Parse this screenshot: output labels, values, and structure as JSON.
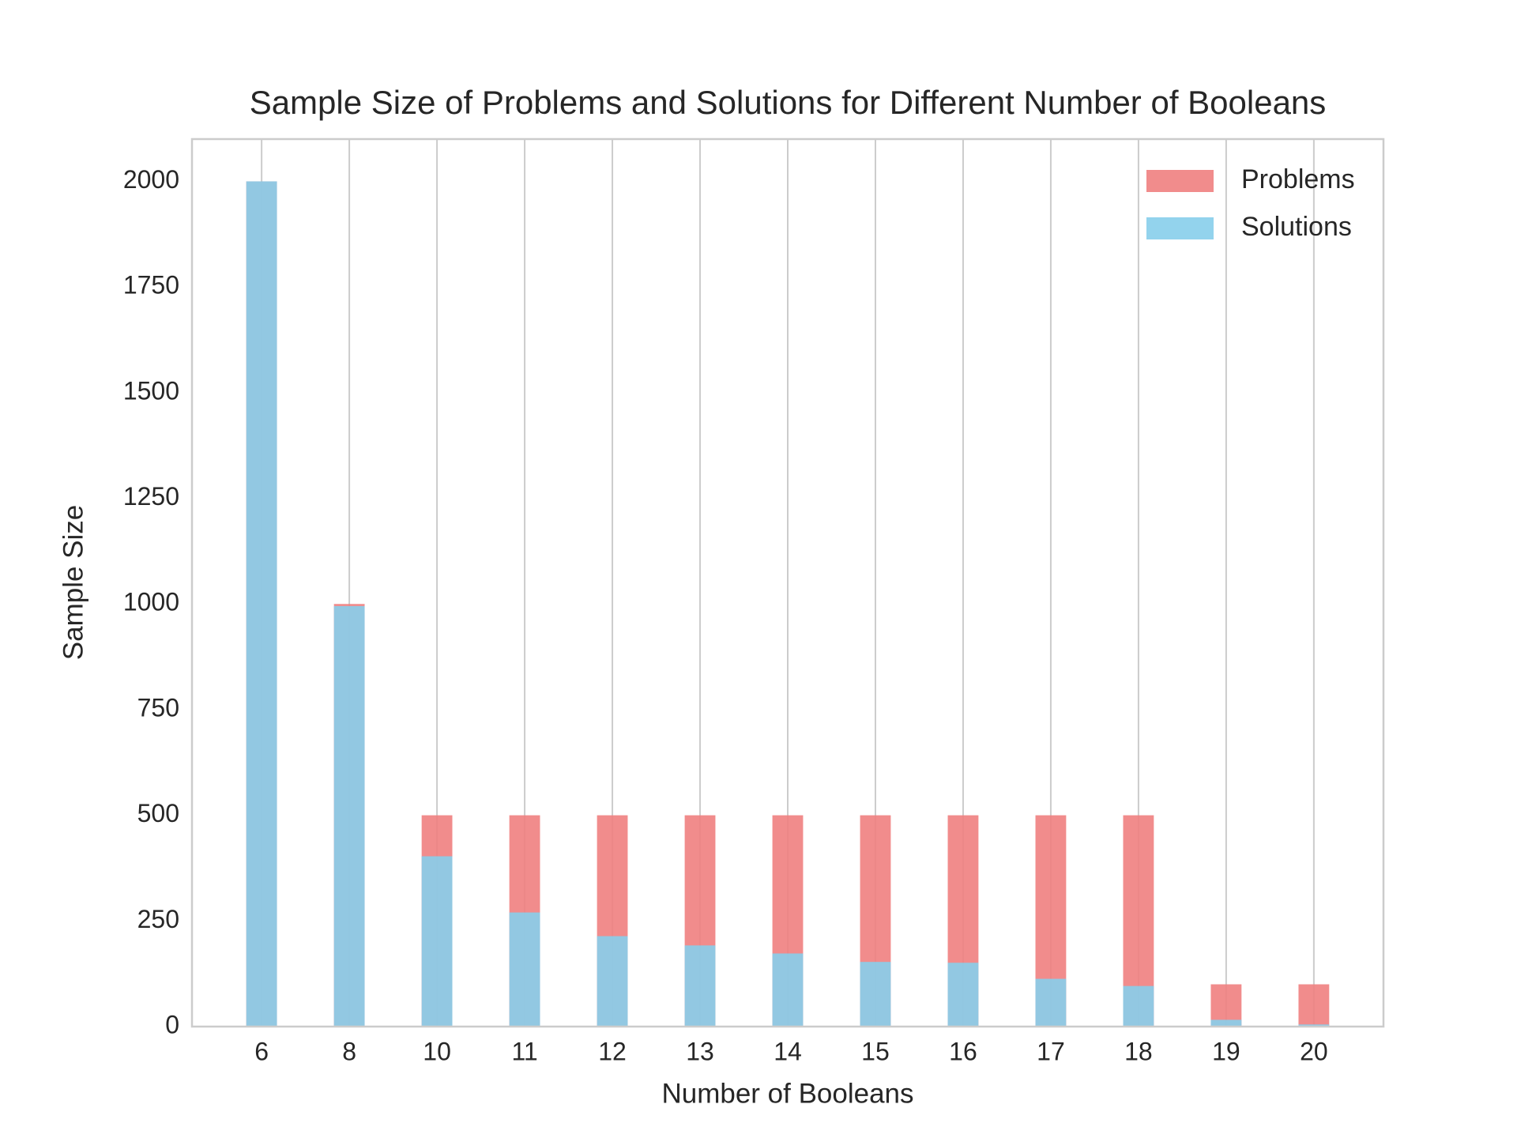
{
  "chart_data": {
    "type": "bar",
    "title": "Sample Size of Problems and Solutions for Different Number of Booleans",
    "x_label": "Number of Booleans",
    "y_label": "Sample Size",
    "categories": [
      "6",
      "8",
      "10",
      "11",
      "12",
      "13",
      "14",
      "15",
      "16",
      "17",
      "18",
      "19",
      "20"
    ],
    "series": [
      {
        "name": "Problems",
        "color": "#f08080",
        "values": [
          2000,
          1000,
          500,
          500,
          500,
          500,
          500,
          500,
          500,
          500,
          500,
          100,
          100
        ]
      },
      {
        "name": "Solutions",
        "color": "#87ceeb",
        "values": [
          2000,
          995,
          403,
          270,
          214,
          192,
          173,
          153,
          151,
          113,
          96,
          16,
          5
        ]
      }
    ],
    "ylim": [
      0,
      2100
    ],
    "yticks": [
      0,
      250,
      500,
      750,
      1000,
      1250,
      1500,
      1750,
      2000
    ],
    "grid": "x",
    "legend": "upper right"
  }
}
